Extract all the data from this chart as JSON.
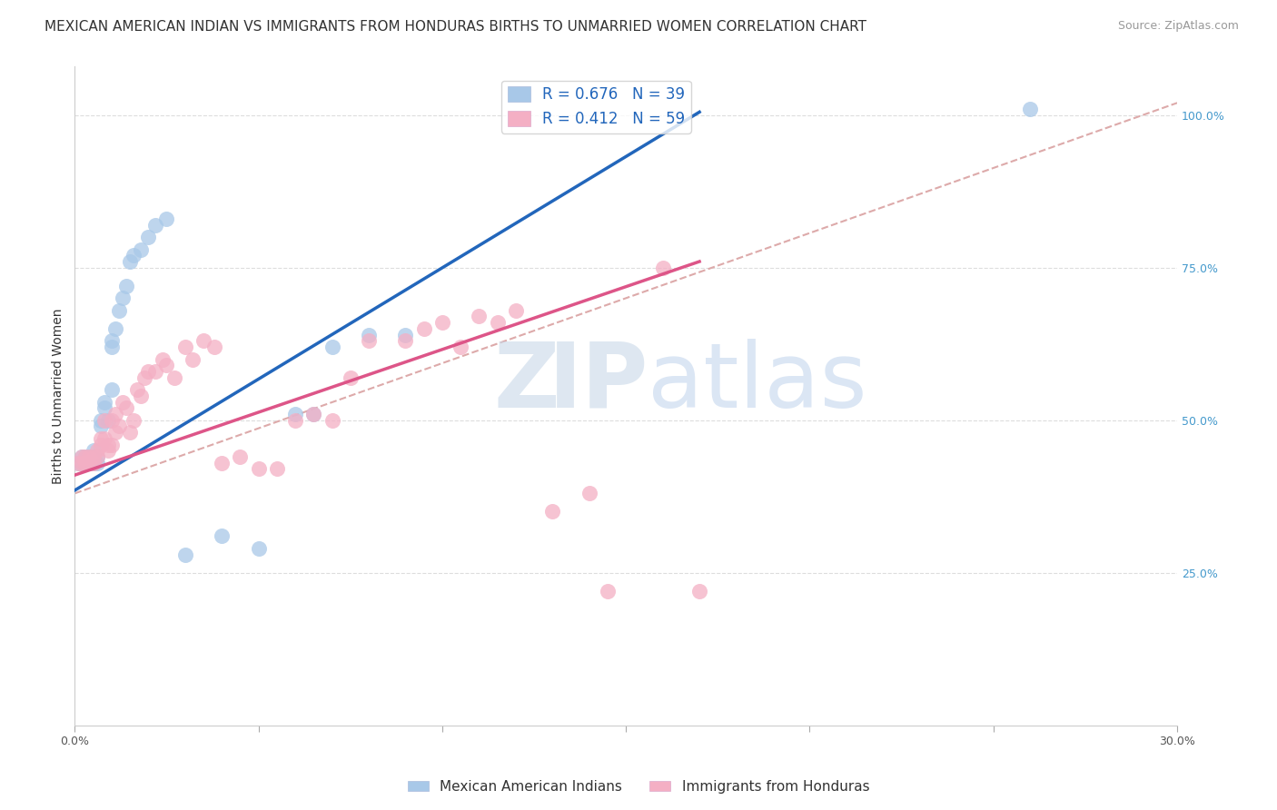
{
  "title": "MEXICAN AMERICAN INDIAN VS IMMIGRANTS FROM HONDURAS BIRTHS TO UNMARRIED WOMEN CORRELATION CHART",
  "source": "Source: ZipAtlas.com",
  "ylabel_left": "Births to Unmarried Women",
  "xlim": [
    0.0,
    0.3
  ],
  "ylim": [
    0.0,
    1.08
  ],
  "xticks": [
    0.0,
    0.05,
    0.1,
    0.15,
    0.2,
    0.25,
    0.3
  ],
  "yticks_right": [
    0.0,
    0.25,
    0.5,
    0.75,
    1.0
  ],
  "ytick_labels_right": [
    "",
    "25.0%",
    "50.0%",
    "75.0%",
    "100.0%"
  ],
  "legend_r1": "R = 0.676",
  "legend_n1": "N = 39",
  "legend_r2": "R = 0.412",
  "legend_n2": "N = 59",
  "blue_scatter_color": "#a8c8e8",
  "pink_scatter_color": "#f4afc4",
  "blue_line_color": "#2266bb",
  "pink_line_color": "#dd5588",
  "dash_line_color": "#ddaaaa",
  "legend_text_color": "#2266bb",
  "title_fontsize": 11,
  "source_fontsize": 9,
  "axis_label_fontsize": 10,
  "tick_fontsize": 9,
  "watermark_z": "Z",
  "watermark_ip": "IP",
  "watermark_atlas": "atlas",
  "blue_line_x0": 0.0,
  "blue_line_y0": 0.385,
  "blue_line_x1": 0.17,
  "blue_line_y1": 1.005,
  "pink_line_x0": 0.0,
  "pink_line_y0": 0.41,
  "pink_line_x1": 0.17,
  "pink_line_y1": 0.76,
  "dash_line_x0": 0.0,
  "dash_line_y0": 0.38,
  "dash_line_x1": 0.3,
  "dash_line_y1": 1.02,
  "blue_x": [
    0.001,
    0.002,
    0.002,
    0.003,
    0.003,
    0.004,
    0.004,
    0.005,
    0.005,
    0.005,
    0.006,
    0.006,
    0.007,
    0.007,
    0.008,
    0.008,
    0.009,
    0.01,
    0.01,
    0.01,
    0.011,
    0.012,
    0.013,
    0.014,
    0.015,
    0.016,
    0.018,
    0.02,
    0.022,
    0.025,
    0.03,
    0.04,
    0.05,
    0.06,
    0.065,
    0.07,
    0.08,
    0.09,
    0.26
  ],
  "blue_y": [
    0.43,
    0.43,
    0.44,
    0.44,
    0.43,
    0.44,
    0.43,
    0.44,
    0.43,
    0.45,
    0.44,
    0.43,
    0.5,
    0.49,
    0.53,
    0.52,
    0.5,
    0.62,
    0.63,
    0.55,
    0.65,
    0.68,
    0.7,
    0.72,
    0.76,
    0.77,
    0.78,
    0.8,
    0.82,
    0.83,
    0.28,
    0.31,
    0.29,
    0.51,
    0.51,
    0.62,
    0.64,
    0.64,
    1.01
  ],
  "pink_x": [
    0.001,
    0.002,
    0.002,
    0.003,
    0.003,
    0.004,
    0.004,
    0.005,
    0.005,
    0.006,
    0.006,
    0.007,
    0.007,
    0.008,
    0.008,
    0.009,
    0.009,
    0.01,
    0.01,
    0.011,
    0.011,
    0.012,
    0.013,
    0.014,
    0.015,
    0.016,
    0.017,
    0.018,
    0.019,
    0.02,
    0.022,
    0.024,
    0.025,
    0.027,
    0.03,
    0.032,
    0.035,
    0.038,
    0.04,
    0.045,
    0.05,
    0.055,
    0.06,
    0.065,
    0.07,
    0.075,
    0.08,
    0.09,
    0.095,
    0.1,
    0.105,
    0.11,
    0.115,
    0.12,
    0.13,
    0.14,
    0.145,
    0.16,
    0.17
  ],
  "pink_y": [
    0.43,
    0.43,
    0.44,
    0.44,
    0.43,
    0.44,
    0.43,
    0.44,
    0.43,
    0.45,
    0.44,
    0.47,
    0.46,
    0.5,
    0.47,
    0.46,
    0.45,
    0.5,
    0.46,
    0.51,
    0.48,
    0.49,
    0.53,
    0.52,
    0.48,
    0.5,
    0.55,
    0.54,
    0.57,
    0.58,
    0.58,
    0.6,
    0.59,
    0.57,
    0.62,
    0.6,
    0.63,
    0.62,
    0.43,
    0.44,
    0.42,
    0.42,
    0.5,
    0.51,
    0.5,
    0.57,
    0.63,
    0.63,
    0.65,
    0.66,
    0.62,
    0.67,
    0.66,
    0.68,
    0.35,
    0.38,
    0.22,
    0.75,
    0.22
  ]
}
